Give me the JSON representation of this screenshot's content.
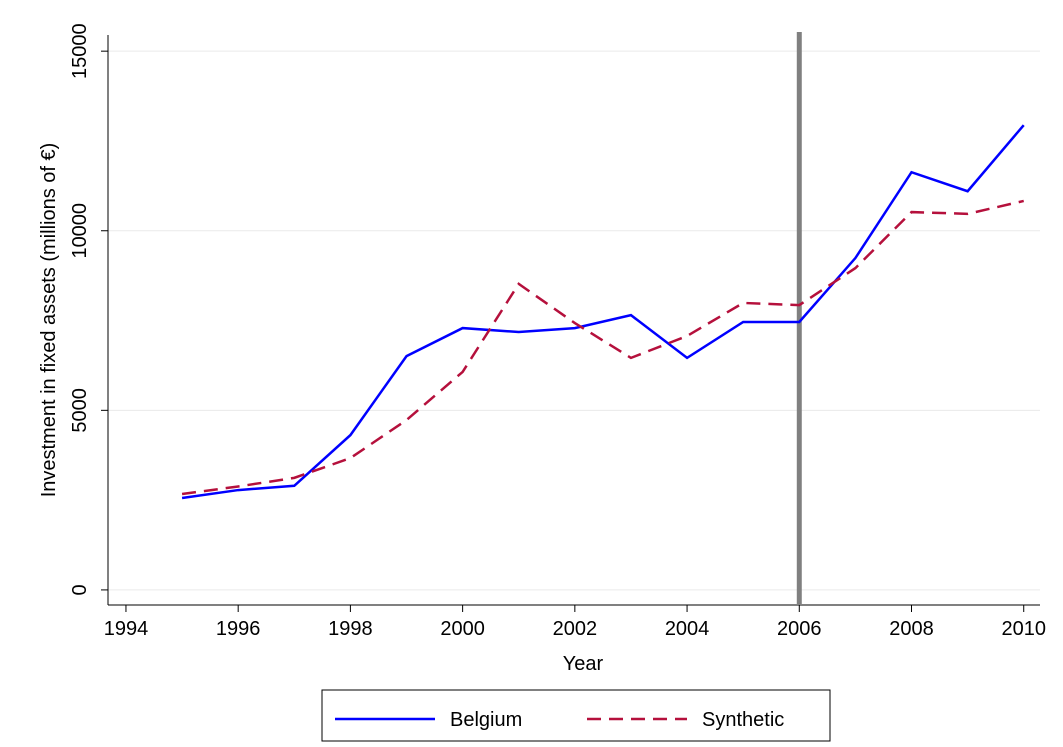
{
  "chart_data": {
    "type": "line",
    "x_label": "Year",
    "y_label": "Investment in fixed assets (millions of €)",
    "x": [
      1995,
      1996,
      1997,
      1998,
      1999,
      2000,
      2001,
      2002,
      2003,
      2004,
      2005,
      2006,
      2007,
      2008,
      2009,
      2010
    ],
    "series": [
      {
        "name": "Belgium",
        "color": "#0000ff",
        "dash": "solid",
        "values": [
          2560,
          2780,
          2900,
          4310,
          6510,
          7290,
          7180,
          7290,
          7650,
          6460,
          7460,
          7460,
          9240,
          11630,
          11100,
          12940
        ]
      },
      {
        "name": "Synthetic",
        "color": "#b5103c",
        "dash": "dashed",
        "values": [
          2670,
          2880,
          3120,
          3670,
          4730,
          6070,
          8520,
          7430,
          6460,
          7070,
          7990,
          7930,
          8960,
          10520,
          10470,
          10830
        ]
      }
    ],
    "vline": 2006,
    "vline_color": "#808080",
    "xlim": [
      1993.68,
      2010.29
    ],
    "xticks": [
      1994,
      1996,
      1998,
      2000,
      2002,
      2004,
      2006,
      2008,
      2010
    ],
    "ylim": [
      -420,
      15450
    ],
    "yticks": [
      0,
      5000,
      10000,
      15000
    ],
    "grid": true,
    "legend": "bottom"
  }
}
